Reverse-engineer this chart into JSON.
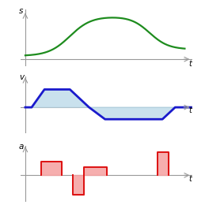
{
  "fig_width": 2.59,
  "fig_height": 2.74,
  "dpi": 100,
  "bg_color": "#ffffff",
  "green_color": "#1e8c1e",
  "blue_color": "#1a1acc",
  "blue_fill": "#b8d8e8",
  "red_color": "#dd1111",
  "red_fill": "#f5a0a0",
  "axis_color": "#999999",
  "time_label": "t",
  "s_label": "s",
  "v_label": "v",
  "a_label": "a"
}
